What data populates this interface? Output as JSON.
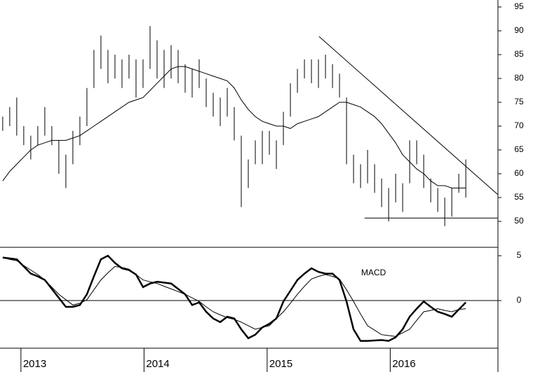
{
  "chart_data": {
    "type": "ohlc",
    "x": [
      2012.852,
      2012.909,
      2012.966,
      2013.023,
      2013.08,
      2013.137,
      2013.194,
      2013.251,
      2013.308,
      2013.365,
      2013.422,
      2013.479,
      2013.536,
      2013.593,
      2013.65,
      2013.707,
      2013.764,
      2013.821,
      2013.878,
      2013.935,
      2013.992,
      2014.049,
      2014.106,
      2014.163,
      2014.22,
      2014.277,
      2014.334,
      2014.391,
      2014.448,
      2014.505,
      2014.562,
      2014.619,
      2014.676,
      2014.733,
      2014.79,
      2014.847,
      2014.904,
      2014.961,
      2015.018,
      2015.075,
      2015.132,
      2015.189,
      2015.246,
      2015.303,
      2015.36,
      2015.417,
      2015.474,
      2015.531,
      2015.588,
      2015.645,
      2015.702,
      2015.759,
      2015.816,
      2015.873,
      2015.93,
      2015.987,
      2016.044,
      2016.101,
      2016.158,
      2016.215,
      2016.272,
      2016.329,
      2016.386,
      2016.443,
      2016.5,
      2016.557,
      2016.614
    ],
    "high": [
      72,
      74,
      76,
      70,
      68,
      70,
      74,
      70,
      67,
      64,
      69,
      72,
      78,
      86,
      89,
      86,
      85,
      84,
      85,
      84,
      84,
      91,
      88,
      86,
      87,
      86,
      83,
      82,
      84,
      80,
      77,
      76,
      78,
      74,
      68,
      63,
      67,
      69,
      69,
      67,
      73,
      79,
      82,
      84,
      84,
      84,
      85,
      83,
      81,
      76,
      64,
      62,
      65,
      62,
      59,
      57,
      60,
      58,
      67,
      67,
      64,
      59,
      57,
      55,
      57,
      60,
      63
    ],
    "low": [
      69,
      70,
      68,
      66,
      63,
      66,
      68,
      66,
      60,
      57,
      62,
      66,
      70,
      78,
      82,
      79,
      80,
      78,
      80,
      76,
      78,
      82,
      80,
      78,
      80,
      79,
      77,
      76,
      78,
      74,
      72,
      70,
      72,
      67,
      53,
      57,
      62,
      62,
      64,
      61,
      66,
      72,
      77,
      80,
      79,
      78,
      80,
      78,
      76,
      62,
      58,
      57,
      58,
      56,
      53,
      50,
      54,
      52,
      58,
      62,
      57,
      54,
      52,
      49,
      51,
      56,
      55
    ],
    "ma": [
      58.5,
      60.5,
      62,
      63.5,
      65,
      66,
      66.5,
      67,
      67,
      67,
      67.5,
      68,
      69,
      70,
      71,
      72,
      73,
      74,
      75,
      75.5,
      76,
      77.5,
      79,
      80.5,
      82,
      82.5,
      82.5,
      82,
      81.5,
      81,
      80.5,
      80,
      79.5,
      78,
      75.5,
      73.5,
      72,
      71,
      70.5,
      70,
      70,
      69.5,
      70.5,
      71,
      71.5,
      72,
      73,
      74,
      75,
      75,
      74.5,
      74,
      73,
      72,
      70.5,
      68.5,
      66.5,
      64,
      62.5,
      61,
      60,
      58.5,
      57.5,
      57.5,
      57,
      57,
      57
    ],
    "macd": {
      "label": "MACD",
      "values": [
        4.8,
        4.7,
        4.6,
        3.8,
        3.0,
        2.7,
        2.3,
        1.3,
        0.3,
        -0.7,
        -0.7,
        -0.5,
        0.7,
        2.7,
        4.6,
        5.0,
        4.2,
        3.6,
        3.4,
        2.9,
        1.5,
        1.9,
        2.1,
        2.0,
        1.9,
        1.3,
        0.7,
        -0.5,
        -0.2,
        -1.25,
        -2.0,
        -2.4,
        -1.8,
        -2.0,
        -3.2,
        -4.2,
        -3.8,
        -3.0,
        -2.6,
        -2.0,
        -0.1,
        1.1,
        2.3,
        3.0,
        3.6,
        3.2,
        3.0,
        3.0,
        2.3,
        -0.1,
        -3.2,
        -4.5,
        -4.5,
        -4.45,
        -4.4,
        -4.5,
        -4.1,
        -3.2,
        -1.8,
        -0.9,
        -0.1,
        -0.7,
        -1.25,
        -1.5,
        -1.8,
        -1.0,
        -0.2
      ],
      "signal": [
        4.8,
        4.6,
        4.45,
        3.9,
        3.4,
        2.9,
        2.3,
        1.5,
        0.7,
        0.1,
        -0.5,
        -0.3,
        0.1,
        1.2,
        2.3,
        3.1,
        3.8,
        3.7,
        3.5,
        2.9,
        2.3,
        2.1,
        1.9,
        1.6,
        1.3,
        1.0,
        0.7,
        0.3,
        -0.1,
        -0.7,
        -1.25,
        -1.6,
        -1.9,
        -2.1,
        -2.4,
        -2.8,
        -3.2,
        -3.0,
        -2.8,
        -2.0,
        -1.25,
        -0.3,
        0.7,
        1.6,
        2.4,
        2.7,
        2.9,
        2.7,
        2.4,
        1.2,
        -0.1,
        -1.5,
        -2.8,
        -3.3,
        -3.8,
        -3.9,
        -4.0,
        -3.6,
        -3.2,
        -2.2,
        -1.25,
        -1.1,
        -0.9,
        -1.1,
        -1.25,
        -1.0,
        -0.9
      ]
    },
    "trendlines": [
      {
        "x": [
          2015.422,
          2016.875
        ],
        "y": [
          88.8,
          55.6
        ]
      },
      {
        "x": [
          2015.792,
          2016.875
        ],
        "y": [
          50.7,
          50.7
        ]
      }
    ],
    "xlim": [
      2012.83,
      2016.875
    ],
    "xticks": [
      2013,
      2014,
      2015,
      2016
    ],
    "ylim": [
      44.56,
      96.47
    ],
    "yticks": [
      50,
      55,
      60,
      65,
      70,
      75,
      80,
      85,
      90,
      95
    ],
    "y2lim": [
      -5.31,
      5.94
    ],
    "y2ticks": [
      0,
      5
    ]
  }
}
